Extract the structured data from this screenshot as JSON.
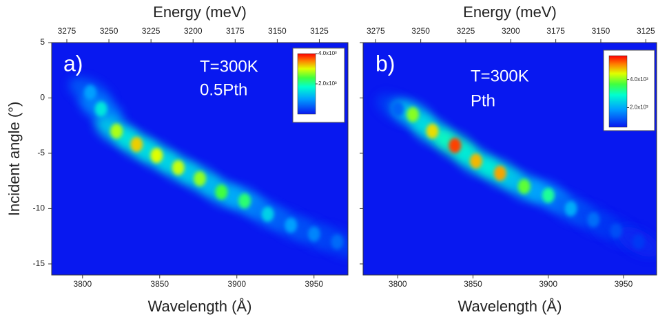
{
  "chart_data": [
    {
      "type": "heatmap",
      "panel_label": "a)",
      "annotations": [
        "T=300K",
        "0.5Pth"
      ],
      "x_label": "Wavelength (Å)",
      "x2_label": "Energy (meV)",
      "y_label": "Incident angle (°)",
      "xlim": [
        3780,
        3972
      ],
      "xticks": [
        3800,
        3850,
        3900,
        3950
      ],
      "x2lim": [
        3284,
        3108
      ],
      "x2ticks": [
        3275,
        3250,
        3225,
        3200,
        3175,
        3150,
        3125
      ],
      "ylim": [
        -16,
        5
      ],
      "yticks": [
        5,
        0,
        -5,
        -10,
        -15
      ],
      "colorbar": {
        "clim": [
          0,
          4000
        ],
        "ticks": [
          {
            "value": 4000,
            "label": "4.0x10³"
          },
          {
            "value": 2000,
            "label": "2.0x10³"
          }
        ]
      },
      "spots": {
        "x": [
          3805,
          3812,
          3822,
          3835,
          3848,
          3862,
          3876,
          3890,
          3905,
          3920,
          3935,
          3950,
          3965
        ],
        "y": [
          0.5,
          -1,
          -3,
          -4.2,
          -5.2,
          -6.3,
          -7.3,
          -8.5,
          -9.3,
          -10.5,
          -11.5,
          -12.3,
          -13
        ],
        "values": [
          1000,
          1600,
          2800,
          3200,
          3000,
          2900,
          2700,
          2400,
          2200,
          1400,
          1000,
          800,
          600
        ]
      }
    },
    {
      "type": "heatmap",
      "panel_label": "b)",
      "annotations": [
        "T=300K",
        "Pth"
      ],
      "x_label": "Wavelength (Å)",
      "x2_label": "Energy (meV)",
      "xlim": [
        3777,
        3972
      ],
      "xticks": [
        3800,
        3850,
        3900,
        3950
      ],
      "x2lim": [
        3282,
        3119
      ],
      "x2ticks": [
        3275,
        3250,
        3225,
        3200,
        3175,
        3150,
        3125
      ],
      "ylim": [
        -16,
        5
      ],
      "yticks": [
        5,
        0,
        -5,
        -10,
        -15
      ],
      "colorbar": {
        "clim": [
          600,
          5700
        ],
        "ticks": [
          {
            "value": 4000,
            "label": "4.0x10³"
          },
          {
            "value": 2000,
            "label": "2.0x10³"
          }
        ]
      },
      "spots": {
        "x": [
          3800,
          3810,
          3823,
          3838,
          3852,
          3868,
          3884,
          3900,
          3915,
          3930,
          3945,
          3960
        ],
        "y": [
          -1,
          -1.5,
          -3,
          -4.3,
          -5.7,
          -6.8,
          -8,
          -8.8,
          -10,
          -11,
          -12,
          -13
        ],
        "values": [
          1300,
          4000,
          4600,
          5400,
          4800,
          4900,
          3800,
          3200,
          2000,
          1400,
          1100,
          900
        ]
      }
    }
  ]
}
